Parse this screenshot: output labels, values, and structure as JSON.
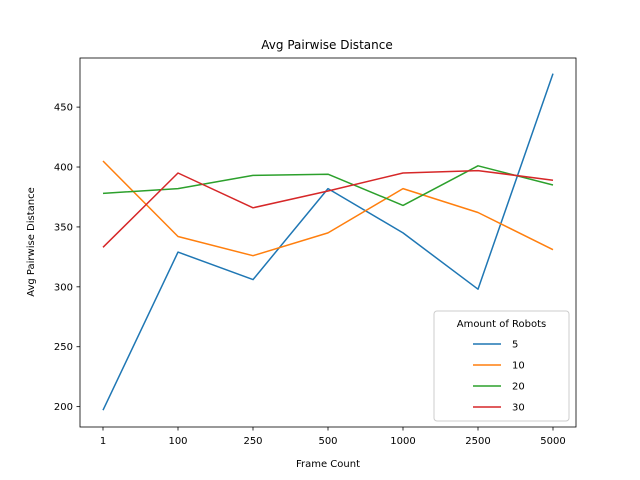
{
  "chart_data": {
    "type": "line",
    "title": "Avg Pairwise Distance",
    "xlabel": "Frame Count",
    "ylabel": "Avg Pairwise Distance",
    "categories": [
      "1",
      "100",
      "250",
      "500",
      "1000",
      "2500",
      "5000"
    ],
    "ylim": [
      183,
      491
    ],
    "yticks": [
      200,
      250,
      300,
      350,
      400,
      450
    ],
    "grid": false,
    "legend": {
      "title": "Amount of Robots",
      "placement": "lower-right"
    },
    "series": [
      {
        "name": "5",
        "color": "#1f77b4",
        "values": [
          197,
          329,
          306,
          382,
          345,
          298,
          478
        ]
      },
      {
        "name": "10",
        "color": "#ff7f0e",
        "values": [
          405,
          342,
          326,
          345,
          382,
          362,
          331
        ]
      },
      {
        "name": "20",
        "color": "#2ca02c",
        "values": [
          378,
          382,
          393,
          394,
          368,
          401,
          385
        ]
      },
      {
        "name": "30",
        "color": "#d62728",
        "values": [
          333,
          395,
          366,
          380,
          395,
          397,
          389
        ]
      }
    ]
  }
}
